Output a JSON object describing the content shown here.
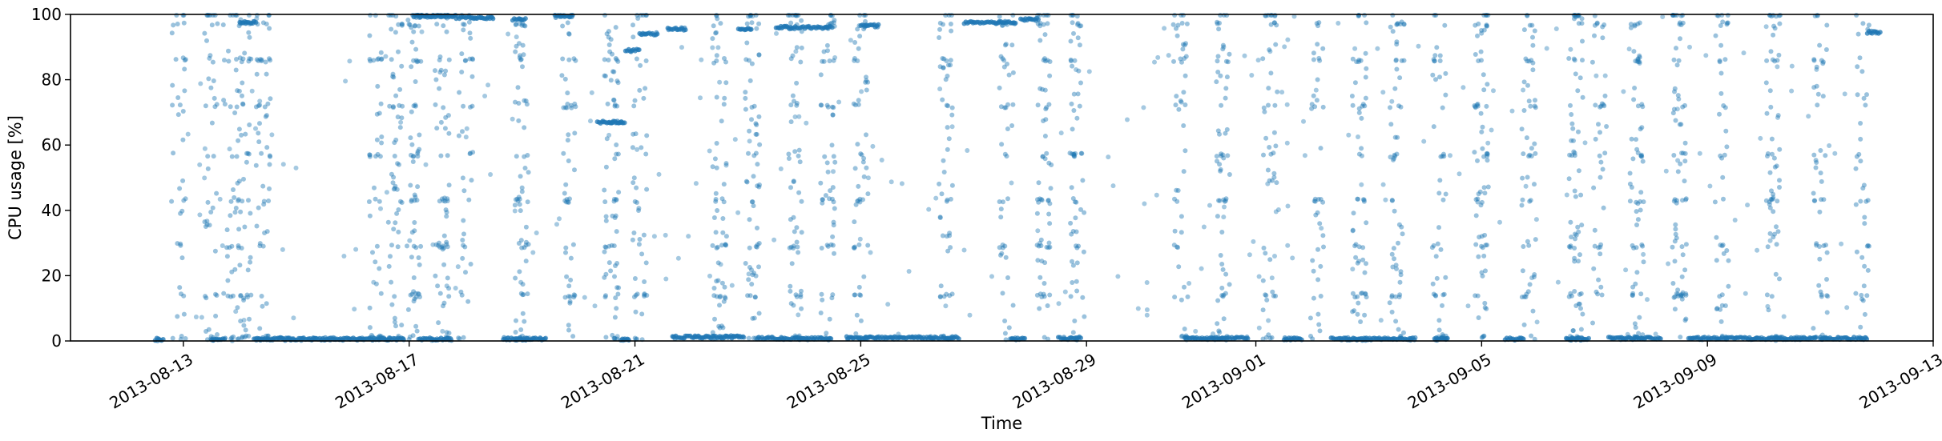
{
  "chart_data": {
    "type": "scatter",
    "title": "",
    "xlabel": "Time",
    "ylabel": "CPU usage [%]",
    "xlim": [
      "2013-08-11",
      "2013-09-13"
    ],
    "ylim": [
      0,
      100
    ],
    "grid": false,
    "legend": "none",
    "point_color": "#1f77b4",
    "x_ticks": [
      {
        "date": "2013-08-13",
        "label": "2013-08-13"
      },
      {
        "date": "2013-08-17",
        "label": "2013-08-17"
      },
      {
        "date": "2013-08-21",
        "label": "2013-08-21"
      },
      {
        "date": "2013-08-25",
        "label": "2013-08-25"
      },
      {
        "date": "2013-08-29",
        "label": "2013-08-29"
      },
      {
        "date": "2013-09-01",
        "label": "2013-09-01"
      },
      {
        "date": "2013-09-05",
        "label": "2013-09-05"
      },
      {
        "date": "2013-09-09",
        "label": "2013-09-09"
      },
      {
        "date": "2013-09-13",
        "label": "2013-09-13"
      }
    ],
    "y_ticks": [
      {
        "value": 0,
        "label": "0"
      },
      {
        "value": 20,
        "label": "20"
      },
      {
        "value": 40,
        "label": "40"
      },
      {
        "value": 60,
        "label": "60"
      },
      {
        "value": 80,
        "label": "80"
      },
      {
        "value": 100,
        "label": "100"
      }
    ],
    "low_bands": [
      {
        "start": "2013-08-12T12:00",
        "end": "2013-08-12T16:00",
        "value": 0.5
      },
      {
        "start": "2013-08-13T12:00",
        "end": "2013-08-13T18:00",
        "value": 0.5
      },
      {
        "start": "2013-08-14T06:00",
        "end": "2013-08-16T22:00",
        "value": 0.6
      },
      {
        "start": "2013-08-17T04:00",
        "end": "2013-08-17T18:00",
        "value": 0.6
      },
      {
        "start": "2013-08-18T16:00",
        "end": "2013-08-19T10:00",
        "value": 0.6
      },
      {
        "start": "2013-08-20T18:00",
        "end": "2013-08-20T22:00",
        "value": 0.6
      },
      {
        "start": "2013-08-21T16:00",
        "end": "2013-08-22T22:00",
        "value": 1.2
      },
      {
        "start": "2013-08-23T04:00",
        "end": "2013-08-24T12:00",
        "value": 0.8
      },
      {
        "start": "2013-08-24T18:00",
        "end": "2013-08-26T18:00",
        "value": 1.0
      },
      {
        "start": "2013-08-27T16:00",
        "end": "2013-08-27T22:00",
        "value": 0.6
      },
      {
        "start": "2013-08-28T12:00",
        "end": "2013-08-28T22:00",
        "value": 0.8
      },
      {
        "start": "2013-08-30T18:00",
        "end": "2013-08-31T21:00",
        "value": 0.8
      },
      {
        "start": "2013-09-01T12:00",
        "end": "2013-09-01T20:00",
        "value": 0.6
      },
      {
        "start": "2013-09-02T08:00",
        "end": "2013-09-03T20:00",
        "value": 0.6
      },
      {
        "start": "2013-09-04T04:00",
        "end": "2013-09-04T10:00",
        "value": 0.6
      },
      {
        "start": "2013-09-05T10:00",
        "end": "2013-09-05T18:00",
        "value": 0.6
      },
      {
        "start": "2013-09-06T12:00",
        "end": "2013-09-06T22:00",
        "value": 0.6
      },
      {
        "start": "2013-09-07T06:00",
        "end": "2013-09-08T04:00",
        "value": 0.8
      },
      {
        "start": "2013-09-08T16:00",
        "end": "2013-09-10T22:00",
        "value": 0.8
      },
      {
        "start": "2013-09-11T00:00",
        "end": "2013-09-11T20:00",
        "value": 0.8
      }
    ],
    "high_bands": [
      {
        "start": "2013-08-14T00:00",
        "end": "2013-08-14T07:00",
        "value": 97.5
      },
      {
        "start": "2013-08-17T02:00",
        "end": "2013-08-17T20:00",
        "value": 99.5
      },
      {
        "start": "2013-08-17T20:00",
        "end": "2013-08-18T12:00",
        "value": 99.0
      },
      {
        "start": "2013-08-18T20:00",
        "end": "2013-08-19T02:00",
        "value": 98.5
      },
      {
        "start": "2013-08-19T14:00",
        "end": "2013-08-19T22:00",
        "value": 99.5
      },
      {
        "start": "2013-08-20T08:00",
        "end": "2013-08-20T20:00",
        "value": 67.0
      },
      {
        "start": "2013-08-20T20:00",
        "end": "2013-08-21T02:00",
        "value": 89.0
      },
      {
        "start": "2013-08-21T02:00",
        "end": "2013-08-21T10:00",
        "value": 94.0
      },
      {
        "start": "2013-08-21T14:00",
        "end": "2013-08-21T22:00",
        "value": 95.5
      },
      {
        "start": "2013-08-22T20:00",
        "end": "2013-08-23T02:00",
        "value": 95.5
      },
      {
        "start": "2013-08-23T12:00",
        "end": "2013-08-24T12:00",
        "value": 96.0
      },
      {
        "start": "2013-08-25T00:00",
        "end": "2013-08-25T08:00",
        "value": 96.5
      },
      {
        "start": "2013-08-26T20:00",
        "end": "2013-08-27T18:00",
        "value": 97.5
      },
      {
        "start": "2013-08-27T20:00",
        "end": "2013-08-28T04:00",
        "value": 98.5
      },
      {
        "start": "2013-09-11T20:00",
        "end": "2013-09-12T02:00",
        "value": 94.5
      }
    ],
    "spike_columns": [
      "2013-08-12T22:00",
      "2013-08-13T12:00",
      "2013-08-13T20:00",
      "2013-08-14T02:00",
      "2013-08-14T10:00",
      "2013-08-16T10:00",
      "2013-08-16T18:00",
      "2013-08-17T02:00",
      "2013-08-17T14:00",
      "2013-08-18T00:00",
      "2013-08-19T00:00",
      "2013-08-19T20:00",
      "2013-08-20T14:00",
      "2013-08-21T02:00",
      "2013-08-22T12:00",
      "2013-08-23T02:00",
      "2013-08-23T20:00",
      "2013-08-24T10:00",
      "2013-08-25T00:00",
      "2013-08-26T12:00",
      "2013-08-27T14:00",
      "2013-08-28T06:00",
      "2013-08-28T20:00",
      "2013-08-30T16:00",
      "2013-08-31T10:00",
      "2013-09-01T06:00",
      "2013-09-02T02:00",
      "2013-09-02T20:00",
      "2013-09-03T12:00",
      "2013-09-04T06:00",
      "2013-09-05T00:00",
      "2013-09-05T20:00",
      "2013-09-06T16:00",
      "2013-09-07T02:00",
      "2013-09-07T18:00",
      "2013-09-08T12:00",
      "2013-09-09T06:00",
      "2013-09-10T04:00",
      "2013-09-11T00:00",
      "2013-09-11T18:00"
    ],
    "spike_levels": [
      100,
      97,
      86,
      72,
      57,
      43,
      29,
      14,
      1
    ]
  }
}
